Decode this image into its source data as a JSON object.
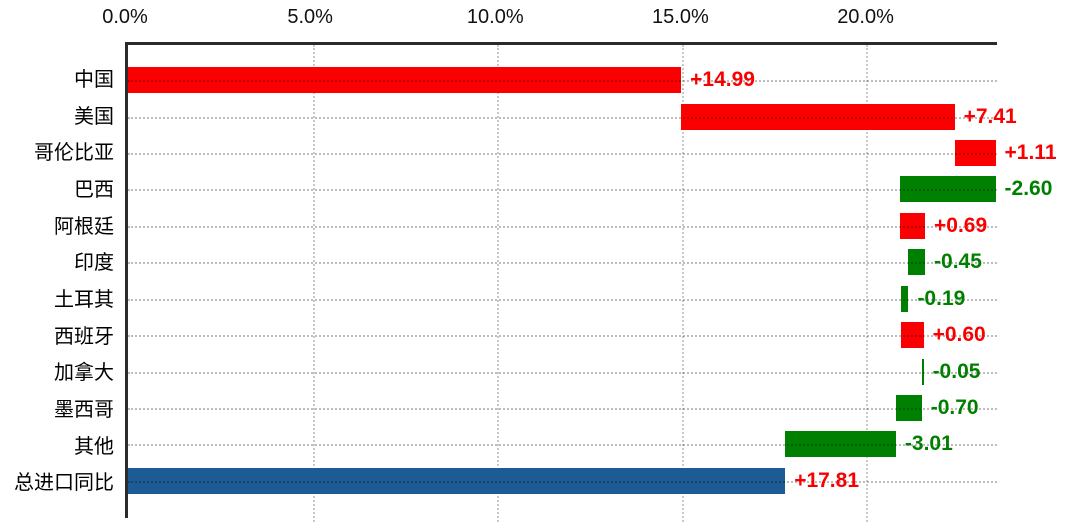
{
  "chart_data": {
    "type": "bar",
    "variant": "horizontal-waterfall",
    "title": "",
    "xlabel": "",
    "ylabel": "",
    "grid": true,
    "legend": null,
    "x_axis": {
      "min": 0,
      "max": 23.55,
      "tick_labels": [
        "0.0%",
        "5.0%",
        "10.0%",
        "15.0%",
        "20.0%"
      ],
      "tick_values": [
        0,
        5,
        10,
        15,
        20
      ],
      "position": "top"
    },
    "categories": [
      "中国",
      "美国",
      "哥伦比亚",
      "巴西",
      "阿根廷",
      "印度",
      "土耳其",
      "西班牙",
      "加拿大",
      "墨西哥",
      "其他",
      "总进口同比"
    ],
    "values": [
      14.99,
      7.41,
      1.11,
      -2.6,
      0.69,
      -0.45,
      -0.19,
      0.6,
      -0.05,
      -0.7,
      -3.01,
      17.81
    ],
    "colors": {
      "increase": "#fa0000",
      "decrease": "#008000",
      "total": "#1d5b96"
    },
    "rows": [
      {
        "label": "中国",
        "value_label": "+14.99",
        "start": 0,
        "end": 14.99,
        "bar_color": "#fa0000",
        "value_color": "#fa0000"
      },
      {
        "label": "美国",
        "value_label": "+7.41",
        "start": 14.99,
        "end": 22.4,
        "bar_color": "#fa0000",
        "value_color": "#fa0000"
      },
      {
        "label": "哥伦比亚",
        "value_label": "+1.11",
        "start": 22.4,
        "end": 23.51,
        "bar_color": "#fa0000",
        "value_color": "#fa0000"
      },
      {
        "label": "巴西",
        "value_label": "-2.60",
        "start": 20.91,
        "end": 23.51,
        "bar_color": "#008000",
        "value_color": "#008000"
      },
      {
        "label": "阿根廷",
        "value_label": "+0.69",
        "start": 20.91,
        "end": 21.6,
        "bar_color": "#fa0000",
        "value_color": "#fa0000"
      },
      {
        "label": "印度",
        "value_label": "-0.45",
        "start": 21.15,
        "end": 21.6,
        "bar_color": "#008000",
        "value_color": "#008000"
      },
      {
        "label": "土耳其",
        "value_label": "-0.19",
        "start": 20.96,
        "end": 21.15,
        "bar_color": "#008000",
        "value_color": "#008000"
      },
      {
        "label": "西班牙",
        "value_label": "+0.60",
        "start": 20.96,
        "end": 21.56,
        "bar_color": "#fa0000",
        "value_color": "#fa0000"
      },
      {
        "label": "加拿大",
        "value_label": "-0.05",
        "start": 21.51,
        "end": 21.56,
        "bar_color": "#008000",
        "value_color": "#008000"
      },
      {
        "label": "墨西哥",
        "value_label": "-0.70",
        "start": 20.81,
        "end": 21.51,
        "bar_color": "#008000",
        "value_color": "#008000"
      },
      {
        "label": "其他",
        "value_label": "-3.01",
        "start": 17.8,
        "end": 20.81,
        "bar_color": "#008000",
        "value_color": "#008000"
      },
      {
        "label": "总进口同比",
        "value_label": "+17.81",
        "start": 0,
        "end": 17.81,
        "bar_color": "#1d5b96",
        "value_color": "#fa0000"
      }
    ]
  }
}
